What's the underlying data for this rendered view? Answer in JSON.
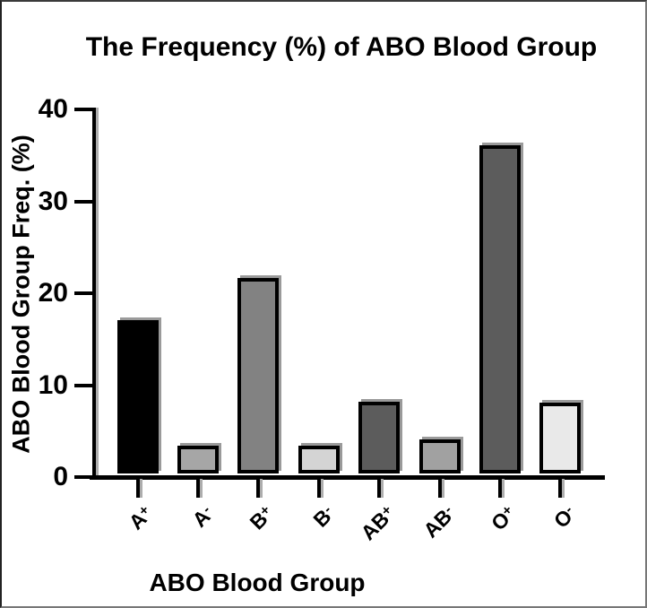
{
  "chart_data": {
    "type": "bar",
    "title": "The Frequency (%) of ABO Blood Group",
    "xlabel": "ABO Blood Group",
    "ylabel": "ABO Blood Group Freq. (%)",
    "categories": [
      "A+",
      "A-",
      "B+",
      "B-",
      "AB+",
      "AB-",
      "O+",
      "O-"
    ],
    "values": [
      16.7,
      3.0,
      21.3,
      3.0,
      7.8,
      3.7,
      35.7,
      7.7
    ],
    "ylim": [
      0,
      40
    ],
    "yticks": [
      0,
      10,
      20,
      30,
      40
    ],
    "grid": false,
    "legend": "none",
    "bar_colors": [
      "#000000",
      "#a6a6a6",
      "#828282",
      "#d4d4d4",
      "#5c5c5c",
      "#a1a1a1",
      "#5c5c5c",
      "#e9e9e9"
    ],
    "bar_border_color": "#000000",
    "axis_color": "#000000",
    "text_color": "#000000",
    "shadow_color": "#9a9a9a"
  }
}
